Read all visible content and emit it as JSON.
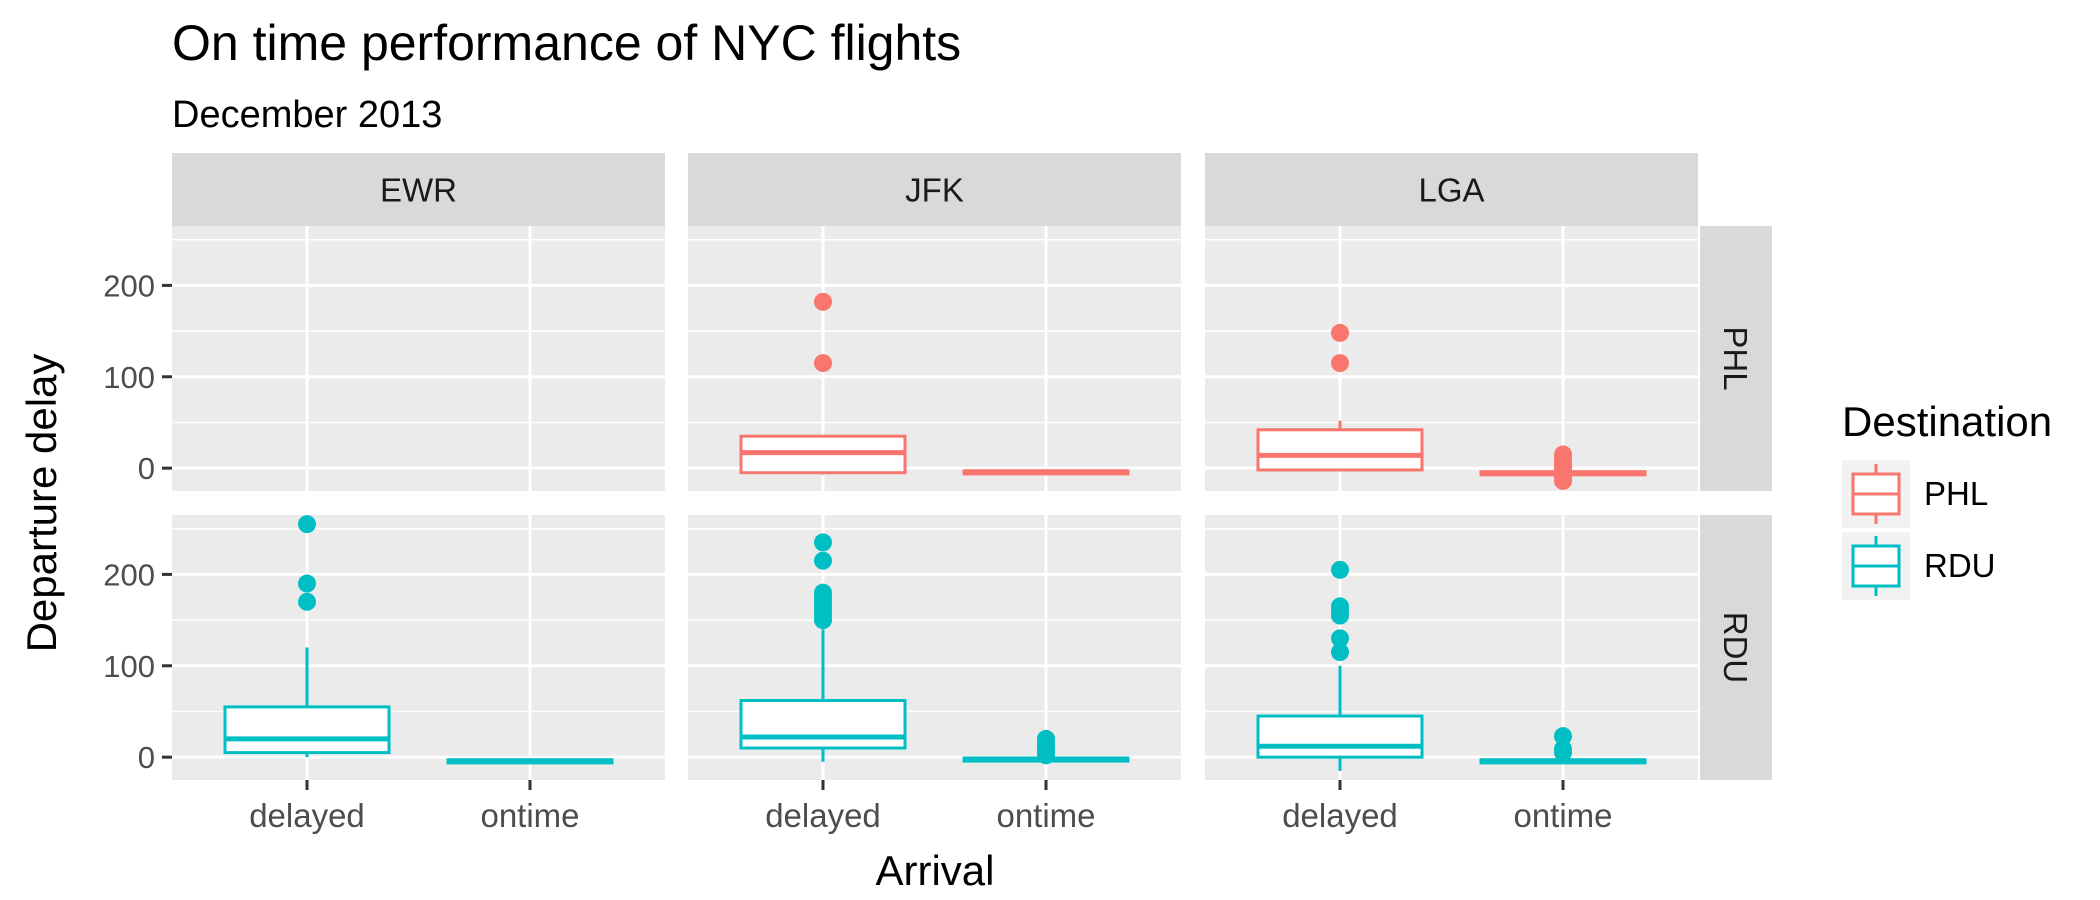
{
  "chart_data": {
    "type": "boxplot",
    "title": "On time performance of NYC flights",
    "subtitle": "December 2013",
    "xlabel": "Arrival",
    "ylabel": "Departure delay",
    "ylim": [
      -25,
      265
    ],
    "y_ticks": [
      0,
      100,
      200
    ],
    "grid": true,
    "legend": {
      "title": "Destination",
      "position": "right",
      "entries": [
        "PHL",
        "RDU"
      ]
    },
    "colors": {
      "PHL": "#F8766D",
      "RDU": "#00BFC4",
      "panel_bg": "#EBEBEB",
      "strip_bg": "#D9D9D9",
      "grid": "#FFFFFF"
    },
    "facet_columns": [
      "EWR",
      "JFK",
      "LGA"
    ],
    "facet_rows": [
      "PHL",
      "RDU"
    ],
    "categories": [
      "delayed",
      "ontime"
    ],
    "panels": [
      {
        "origin": "EWR",
        "dest": "PHL",
        "boxes": []
      },
      {
        "origin": "JFK",
        "dest": "PHL",
        "boxes": [
          {
            "category": "delayed",
            "lower": -7,
            "q1": -5,
            "median": 17,
            "q3": 35,
            "upper": 35,
            "outliers": [
              115,
              182
            ]
          },
          {
            "category": "ontime",
            "lower": -6,
            "q1": -5,
            "median": -4,
            "q3": -3,
            "upper": -2,
            "outliers": []
          }
        ]
      },
      {
        "origin": "LGA",
        "dest": "PHL",
        "boxes": [
          {
            "category": "delayed",
            "lower": -2,
            "q1": -2,
            "median": 14,
            "q3": 42,
            "upper": 52,
            "outliers": [
              115,
              148
            ]
          },
          {
            "category": "ontime",
            "lower": -7,
            "q1": -6,
            "median": -5,
            "q3": -4,
            "upper": -2,
            "outliers": [
              -14,
              -10,
              -6,
              0,
              3,
              7,
              11,
              15
            ]
          }
        ]
      },
      {
        "origin": "EWR",
        "dest": "RDU",
        "boxes": [
          {
            "category": "delayed",
            "lower": 0,
            "q1": 5,
            "median": 20,
            "q3": 55,
            "upper": 120,
            "outliers": [
              170,
              190,
              255
            ]
          },
          {
            "category": "ontime",
            "lower": -6,
            "q1": -5,
            "median": -4,
            "q3": -3,
            "upper": -2,
            "outliers": []
          }
        ]
      },
      {
        "origin": "JFK",
        "dest": "RDU",
        "boxes": [
          {
            "category": "delayed",
            "lower": -5,
            "q1": 10,
            "median": 22,
            "q3": 62,
            "upper": 140,
            "outliers": [
              150,
              155,
              160,
              165,
              170,
              175,
              180,
              215,
              235
            ]
          },
          {
            "category": "ontime",
            "lower": -4,
            "q1": -3,
            "median": -2,
            "q3": -1,
            "upper": 1,
            "outliers": [
              2,
              5,
              8,
              12,
              16,
              20
            ]
          }
        ]
      },
      {
        "origin": "LGA",
        "dest": "RDU",
        "boxes": [
          {
            "category": "delayed",
            "lower": -15,
            "q1": 0,
            "median": 12,
            "q3": 45,
            "upper": 100,
            "outliers": [
              115,
              130,
              155,
              160,
              165,
              205
            ]
          },
          {
            "category": "ontime",
            "lower": -6,
            "q1": -5,
            "median": -4,
            "q3": -3,
            "upper": -2,
            "outliers": [
              5,
              9,
              23
            ]
          }
        ]
      }
    ]
  }
}
